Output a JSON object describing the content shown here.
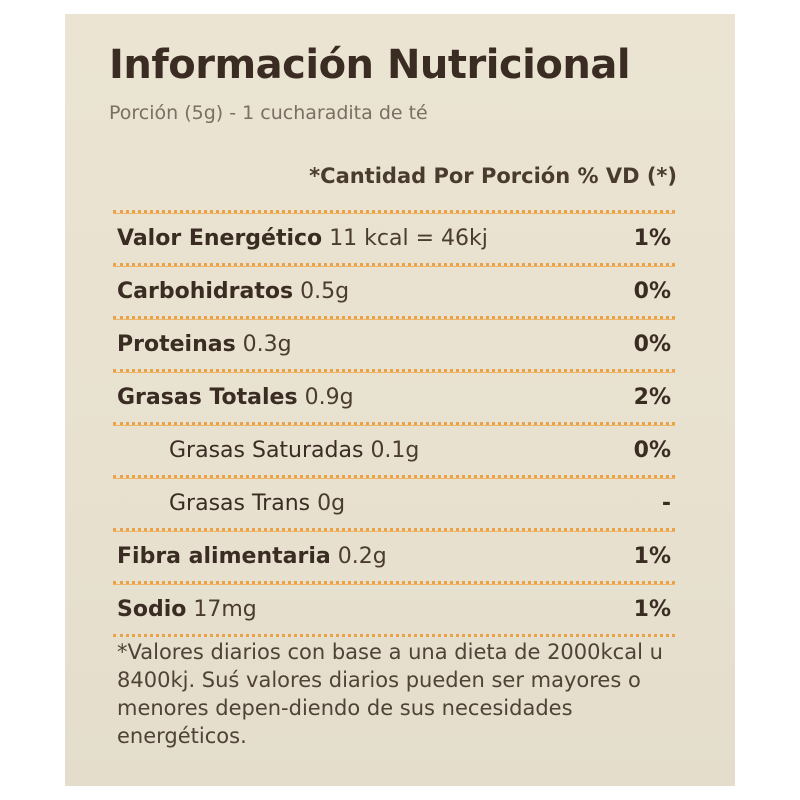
{
  "title": "Información Nutricional",
  "serving": "Porción (5g) - 1 cucharadita de té",
  "header": "*Cantidad Por Porción % VD (*)",
  "accent_color": "#e8a24a",
  "rows": [
    {
      "name": "Valor Energético",
      "value": "11 kcal = 46kj",
      "dv": "1%",
      "indent": false
    },
    {
      "name": "Carbohidratos",
      "value": "0.5g",
      "dv": "0%",
      "indent": false
    },
    {
      "name": "Proteinas",
      "value": "0.3g",
      "dv": "0%",
      "indent": false
    },
    {
      "name": "Grasas Totales",
      "value": "0.9g",
      "dv": "2%",
      "indent": false
    },
    {
      "name": "Grasas Saturadas",
      "value": "0.1g",
      "dv": "0%",
      "indent": true
    },
    {
      "name": "Grasas Trans",
      "value": "0g",
      "dv": "-",
      "indent": true
    },
    {
      "name": "Fibra alimentaria",
      "value": "0.2g",
      "dv": "1%",
      "indent": false
    },
    {
      "name": "Sodio",
      "value": "17mg",
      "dv": "1%",
      "indent": false
    }
  ],
  "footnote": "*Valores diarios con base a una dieta de 2000kcal u 8400kj. Suś valores diarios pueden ser mayores o menores depen-diendo de sus necesidades energéticos."
}
